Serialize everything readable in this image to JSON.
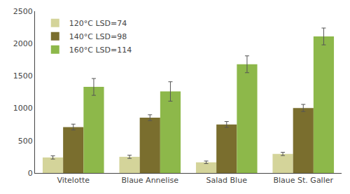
{
  "chart_data": {
    "type": "bar",
    "categories": [
      "Vitelotte",
      "Blaue Annelise",
      "Salad Blue",
      "Blaue St. Galler"
    ],
    "series": [
      {
        "name": "120°C LSD=74",
        "color": "#d4d49a",
        "values": [
          240,
          250,
          165,
          295
        ],
        "errors": [
          25,
          25,
          20,
          25
        ]
      },
      {
        "name": "140°C LSD=98",
        "color": "#7a6e2e",
        "values": [
          710,
          855,
          750,
          1005
        ],
        "errors": [
          45,
          45,
          45,
          55
        ]
      },
      {
        "name": "160°C LSD=114",
        "color": "#8db84a",
        "values": [
          1330,
          1260,
          1680,
          2110
        ],
        "errors": [
          130,
          150,
          130,
          130
        ]
      }
    ],
    "ylim": [
      0,
      2500
    ],
    "yticks": [
      0,
      500,
      1000,
      1500,
      2000,
      2500
    ],
    "grid": false,
    "legend": "upper left"
  }
}
